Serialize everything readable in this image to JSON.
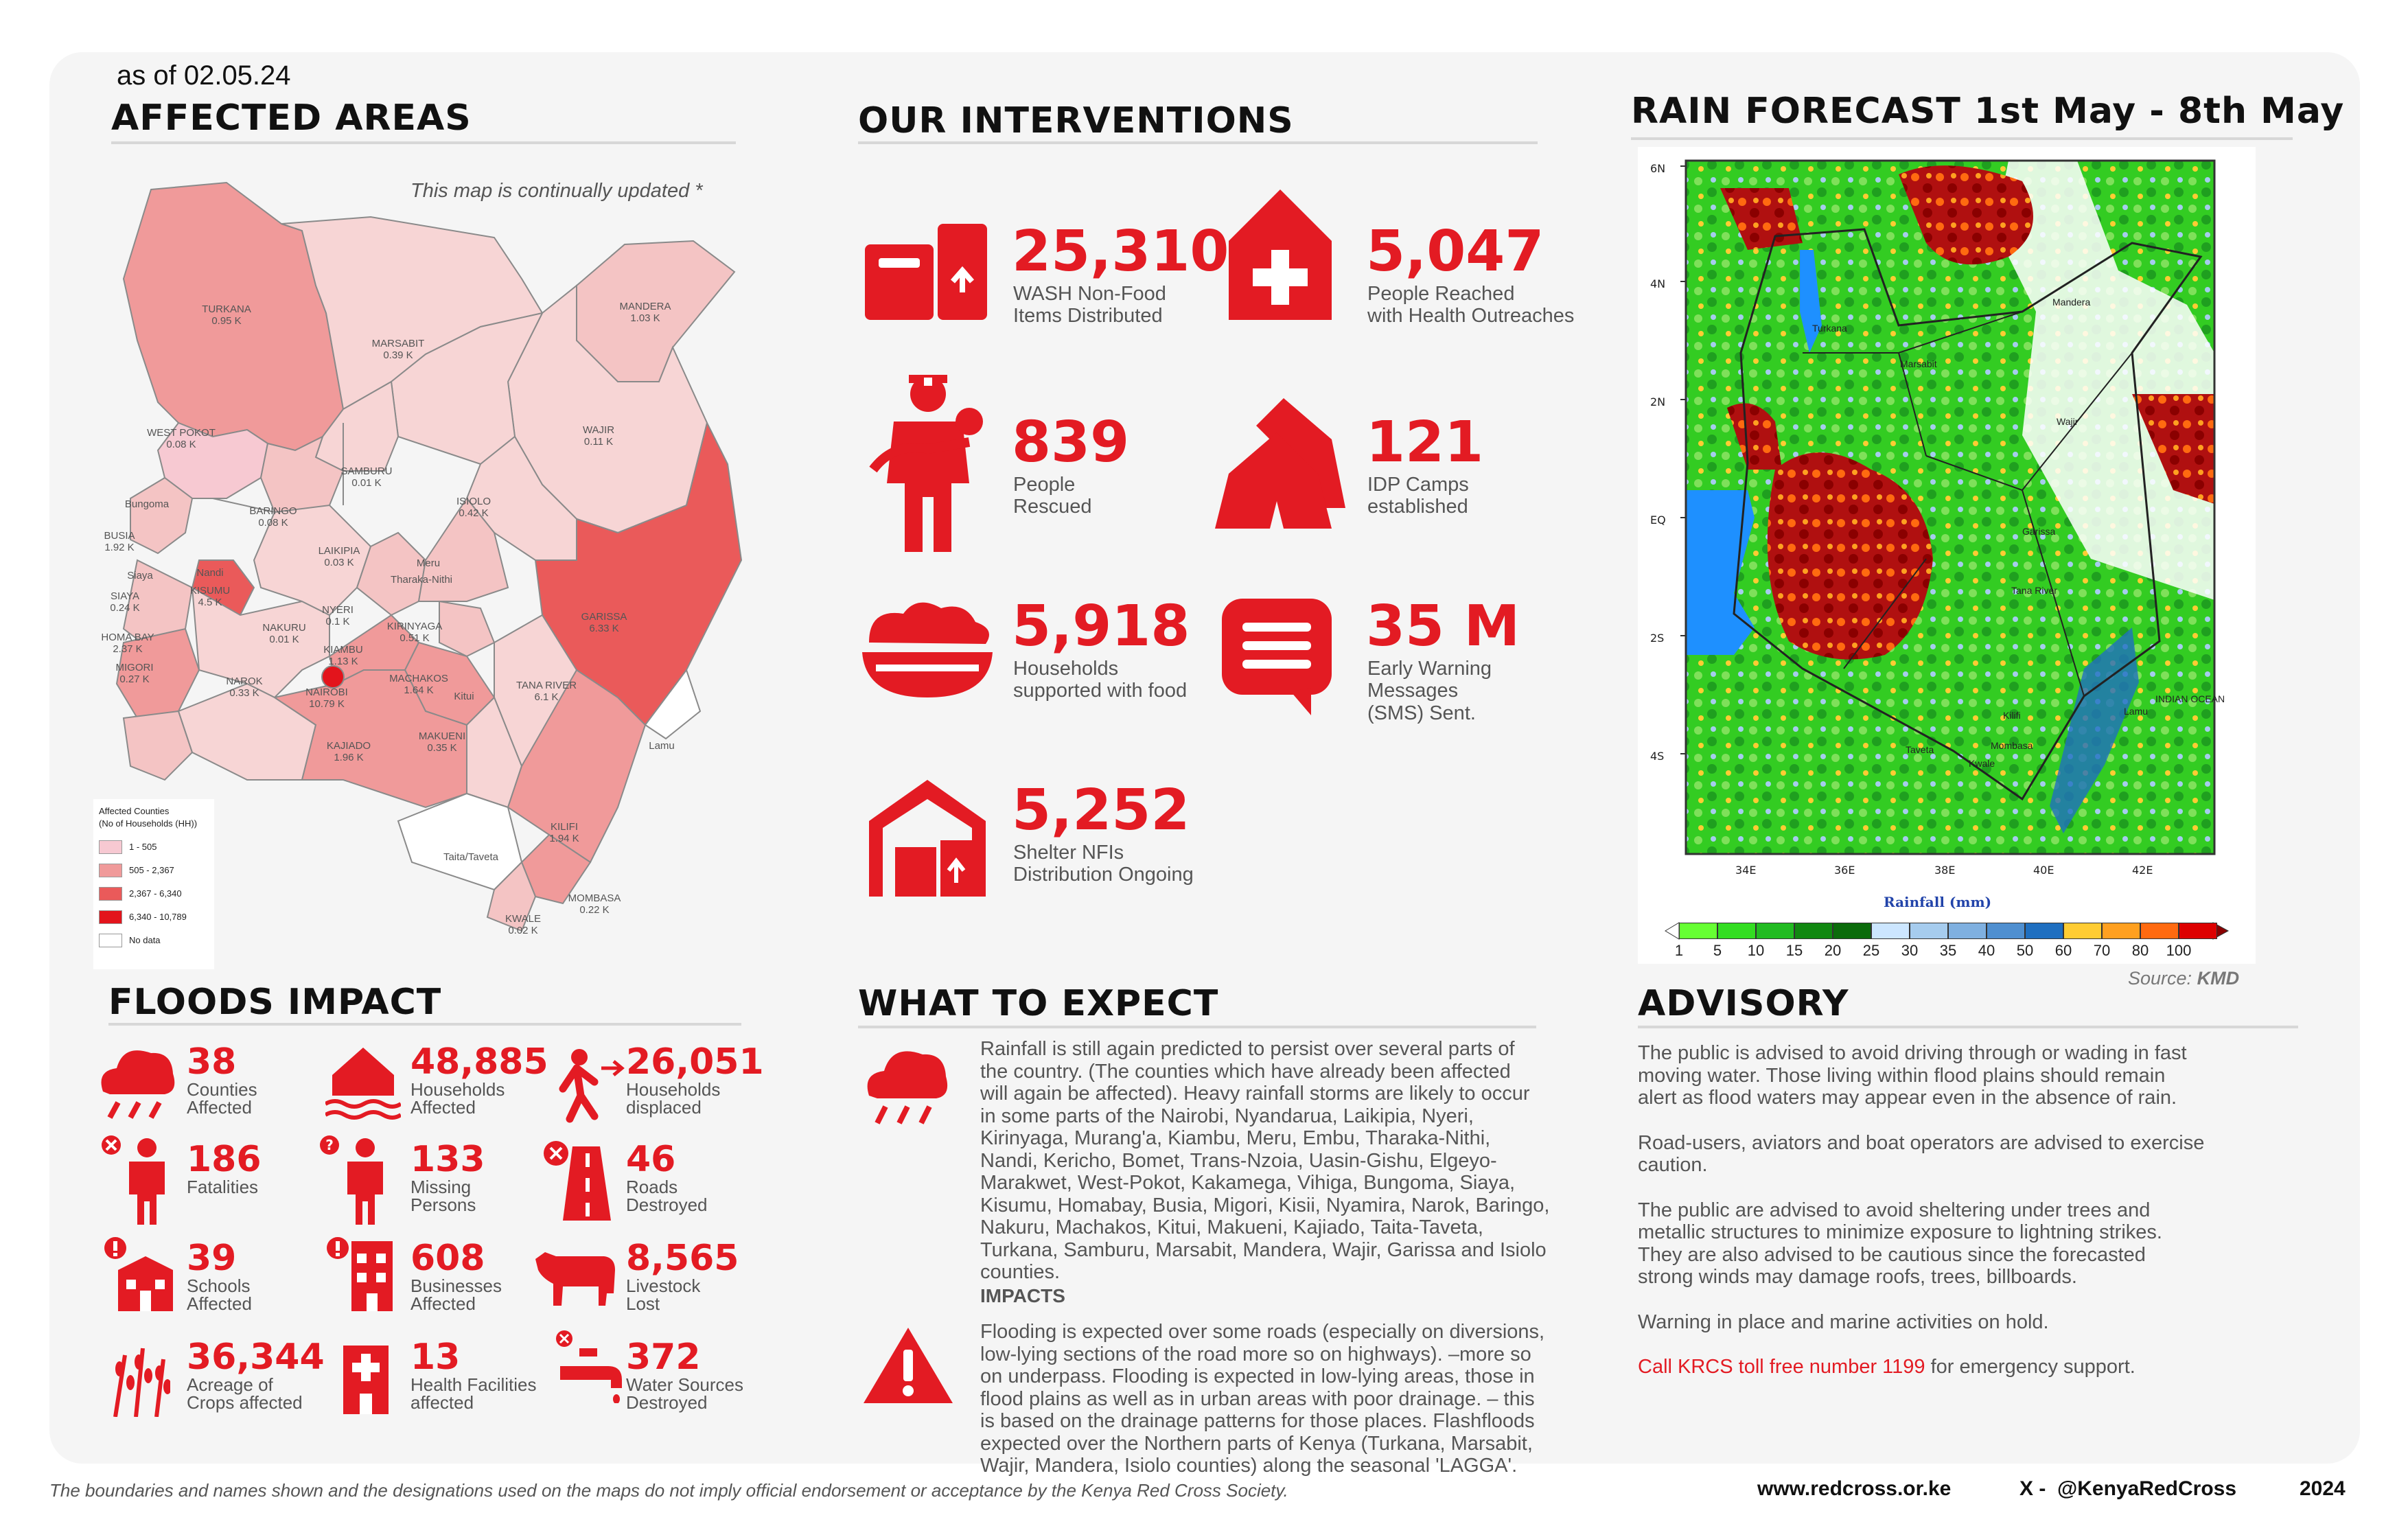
{
  "as_of": "as of 02.05.24",
  "affected": {
    "title": "AFFECTED AREAS",
    "note": "This map is continually updated *",
    "legend": {
      "title1": "Affected Counties",
      "title2": "(No of Households (HH))",
      "items": [
        {
          "label": "1 - 505",
          "color": "#f7c9d2"
        },
        {
          "label": "505 - 2,367",
          "color": "#f09a9a"
        },
        {
          "label": "2,367 - 6,340",
          "color": "#ea5a5a"
        },
        {
          "label": "6,340 - 10,789",
          "color": "#e3141c"
        },
        {
          "label": "No data",
          "color": "#ffffff"
        }
      ]
    },
    "counties": [
      {
        "name": "TURKANA",
        "value": "0.95 K"
      },
      {
        "name": "MARSABIT",
        "value": "0.39 K"
      },
      {
        "name": "MANDERA",
        "value": "1.03 K"
      },
      {
        "name": "WEST POKOT",
        "value": "0.08 K"
      },
      {
        "name": "WAJIR",
        "value": "0.11 K"
      },
      {
        "name": "SAMBURU",
        "value": "0.01 K"
      },
      {
        "name": "ISIOLO",
        "value": "0.42 K"
      },
      {
        "name": "Bungoma",
        "value": ""
      },
      {
        "name": "BARINGO",
        "value": "0.08 K"
      },
      {
        "name": "BUSIA",
        "value": "1.92 K"
      },
      {
        "name": "LAIKIPIA",
        "value": "0.03 K"
      },
      {
        "name": "Meru",
        "value": ""
      },
      {
        "name": "Siaya",
        "value": ""
      },
      {
        "name": "Nandi",
        "value": ""
      },
      {
        "name": "KISUMU",
        "value": "4.5 K"
      },
      {
        "name": "Tharaka-Nithi",
        "value": ""
      },
      {
        "name": "SIAYA",
        "value": "0.24 K"
      },
      {
        "name": "NYERI",
        "value": "0.1 K"
      },
      {
        "name": "GARISSA",
        "value": "6.33 K"
      },
      {
        "name": "NAKURU",
        "value": "0.01 K"
      },
      {
        "name": "KIRINYAGA",
        "value": "0.51 K"
      },
      {
        "name": "HOMA BAY",
        "value": "2.37 K"
      },
      {
        "name": "KIAMBU",
        "value": "1.13 K"
      },
      {
        "name": "MIGORI",
        "value": "0.27 K"
      },
      {
        "name": "NAROK",
        "value": "0.33 K"
      },
      {
        "name": "MACHAKOS",
        "value": "1.64 K"
      },
      {
        "name": "TANA RIVER",
        "value": "6.1 K"
      },
      {
        "name": "NAIROBI",
        "value": "10.79 K"
      },
      {
        "name": "Kitui",
        "value": ""
      },
      {
        "name": "MAKUENI",
        "value": "0.35 K"
      },
      {
        "name": "KAJIADO",
        "value": "1.96 K"
      },
      {
        "name": "Lamu",
        "value": ""
      },
      {
        "name": "KILIFI",
        "value": "1.94 K"
      },
      {
        "name": "Taita/Taveta",
        "value": ""
      },
      {
        "name": "MOMBASA",
        "value": "0.22 K"
      },
      {
        "name": "KWALE",
        "value": "0.02 K"
      }
    ]
  },
  "interventions": {
    "title": "OUR INTERVENTIONS",
    "items": [
      {
        "value": "25,310",
        "line1": "WASH Non-Food",
        "line2": "Items Distributed",
        "icon": "wash-boxes-icon"
      },
      {
        "value": "5,047",
        "line1": "People Reached",
        "line2": "with Health Outreaches",
        "icon": "health-house-icon"
      },
      {
        "value": "839",
        "line1": "People",
        "line2": "Rescued",
        "icon": "rescuer-icon"
      },
      {
        "value": "121",
        "line1": "IDP Camps",
        "line2": "established",
        "icon": "tents-icon"
      },
      {
        "value": "5,918",
        "line1": "Households",
        "line2": "supported with food",
        "icon": "food-bowl-icon"
      },
      {
        "value": "35 M",
        "line1": "Early Warning",
        "line2": "Messages",
        "line3": "(SMS) Sent.",
        "icon": "message-icon"
      },
      {
        "value": "5,252",
        "line1": "Shelter NFIs",
        "line2": "Distribution Ongoing",
        "icon": "warehouse-icon"
      }
    ]
  },
  "forecast": {
    "title": "RAIN FORECAST 1st May - 8th May",
    "lat_labels": [
      "6N",
      "4N",
      "2N",
      "EQ",
      "2S",
      "4S"
    ],
    "lon_labels": [
      "34E",
      "36E",
      "38E",
      "40E",
      "42E"
    ],
    "places": [
      "Turkana",
      "Marsabit",
      "Mandera",
      "Wajir",
      "Garissa",
      "Tana River",
      "Lamu",
      "Kilifi",
      "Mombasa",
      "Kwale",
      "Taveta",
      "INDIAN OCEAN"
    ],
    "colorbar_title": "Rainfall (mm)",
    "colorbar": [
      {
        "label": "1",
        "color": "#66ff33"
      },
      {
        "label": "5",
        "color": "#33dd22"
      },
      {
        "label": "10",
        "color": "#22bb22"
      },
      {
        "label": "15",
        "color": "#118811"
      },
      {
        "label": "20",
        "color": "#0b6b0b"
      },
      {
        "label": "25",
        "color": "#cce6ff"
      },
      {
        "label": "30",
        "color": "#a6ccee"
      },
      {
        "label": "35",
        "color": "#7fb0e0"
      },
      {
        "label": "40",
        "color": "#4f8fd0"
      },
      {
        "label": "50",
        "color": "#1f6fc0"
      },
      {
        "label": "60",
        "color": "#ffcc33"
      },
      {
        "label": "70",
        "color": "#ffa020"
      },
      {
        "label": "80",
        "color": "#ff6a10"
      },
      {
        "label": "100",
        "color": "#dd0000"
      }
    ],
    "colorbar_end": "#8a0000",
    "source_prefix": "Source:",
    "source_name": "KMD"
  },
  "impact": {
    "title": "FLOODS IMPACT",
    "items": [
      {
        "value": "38",
        "line1": "Counties",
        "line2": "Affected",
        "icon": "rain-cloud-icon"
      },
      {
        "value": "48,885",
        "line1": "Households",
        "line2": "Affected",
        "icon": "flooded-house-icon"
      },
      {
        "value": "26,051",
        "line1": "Households",
        "line2": "displaced",
        "icon": "displaced-person-icon"
      },
      {
        "value": "186",
        "line1": "Fatalities",
        "line2": "",
        "icon": "fatality-person-icon"
      },
      {
        "value": "133",
        "line1": "Missing",
        "line2": "Persons",
        "icon": "missing-person-icon"
      },
      {
        "value": "46",
        "line1": "Roads",
        "line2": "Destroyed",
        "icon": "road-icon"
      },
      {
        "value": "39",
        "line1": "Schools",
        "line2": "Affected",
        "icon": "school-icon"
      },
      {
        "value": "608",
        "line1": "Businesses",
        "line2": "Affected",
        "icon": "business-icon"
      },
      {
        "value": "8,565",
        "line1": "Livestock",
        "line2": "Lost",
        "icon": "cow-icon"
      },
      {
        "value": "36,344",
        "line1": "Acreage of",
        "line2": "Crops affected",
        "icon": "crops-icon"
      },
      {
        "value": "13",
        "line1": "Health Facilities",
        "line2": "affected",
        "icon": "health-facility-icon"
      },
      {
        "value": "372",
        "line1": "Water Sources",
        "line2": "Destroyed",
        "icon": "water-tap-icon"
      }
    ]
  },
  "expect": {
    "title": "WHAT TO EXPECT",
    "rain_lines": [
      "Rainfall is still again predicted to persist over several parts of",
      "the country.  (The counties which have already been affected",
      "will again be affected). Heavy rainfall storms are likely to occur",
      "in some parts of the Nairobi, Nyandarua, Laikipia, Nyeri,",
      "Kirinyaga, Murang'a, Kiambu, Meru, Embu, Tharaka-Nithi,",
      "Nandi, Kericho, Bomet, Trans-Nzoia, Uasin-Gishu, Elgeyo-",
      "Marakwet, West-Pokot, Kakamega, Vihiga, Bungoma, Siaya,",
      "Kisumu, Homabay, Busia, Migori, Kisii, Nyamira, Narok, Baringo,",
      "Nakuru, Machakos, Kitui, Makueni, Kajiado, Taita-Taveta,",
      "Turkana, Samburu, Marsabit, Mandera, Wajir, Garissa and Isiolo",
      "counties."
    ],
    "impacts_title": "IMPACTS",
    "impact_lines": [
      "Flooding is expected over some roads (especially on diversions,",
      "low-lying sections of the road more so on highways). –more so",
      "on underpass. Flooding is expected in low-lying areas, those in",
      "flood plains as well as in urban areas with poor drainage. – this",
      "is based on the drainage patterns for those places. Flashfloods",
      "expected over the Northern parts of Kenya (Turkana, Marsabit,",
      "Wajir, Mandera, Isiolo counties) along the seasonal 'LAGGA'."
    ]
  },
  "advisory": {
    "title": "ADVISORY",
    "p1": [
      "The public is advised to avoid driving through or wading in fast",
      "moving water. Those living within flood plains should remain",
      "alert as flood waters may appear even in the absence of rain."
    ],
    "p2": [
      "Road-users, aviators and boat operators are advised to exercise",
      "caution."
    ],
    "p3": [
      "The public are advised to avoid sheltering under trees and",
      "metallic structures to minimize exposure to lightning strikes.",
      "They are also advised to be cautious since the forecasted",
      "strong winds may damage roofs, trees, billboards."
    ],
    "p4": "Warning in place and marine activities on hold.",
    "call_red": "Call KRCS toll free number 1199",
    "call_rest": " for emergency support."
  },
  "footer": {
    "disclaimer": "The boundaries and names shown and the designations used on the maps do not imply official endorsement or acceptance by the Kenya Red Cross Society.",
    "website": "www.redcross.or.ke",
    "social": "X -  @KenyaRedCross",
    "year": "2024"
  }
}
